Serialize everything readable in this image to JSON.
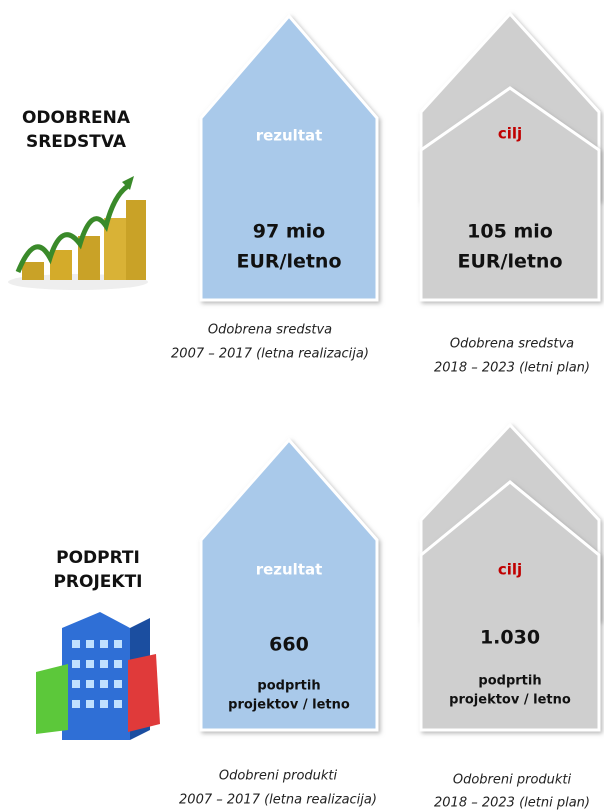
{
  "sections": [
    {
      "heading": [
        "ODOBRENA",
        "SREDSTVA"
      ],
      "result": {
        "tag": "rezultat",
        "value": "97 mio",
        "unit": [
          "EUR/letno"
        ],
        "caption": [
          "Odobrena sredstva",
          "2007 – 2017 (letna realizacija)"
        ]
      },
      "target": {
        "tag": "cilj",
        "value": "105 mio",
        "unit": [
          "EUR/letno"
        ],
        "caption": [
          "Odobrena sredstva",
          "2018 – 2023  (letni plan)"
        ]
      }
    },
    {
      "heading": [
        "PODPRTI",
        "PROJEKTI"
      ],
      "result": {
        "tag": "rezultat",
        "value": "660",
        "unit": [
          "podprtih",
          "projektov / letno"
        ],
        "caption": [
          "Odobreni produkti",
          "2007 – 2017  (letna realizacija)"
        ]
      },
      "target": {
        "tag": "cilj",
        "value": "1.030",
        "unit": [
          "podprtih",
          "projektov / letno"
        ],
        "caption": [
          "Odobreni produkti",
          "2018 – 2023  (letni plan)"
        ]
      }
    }
  ]
}
